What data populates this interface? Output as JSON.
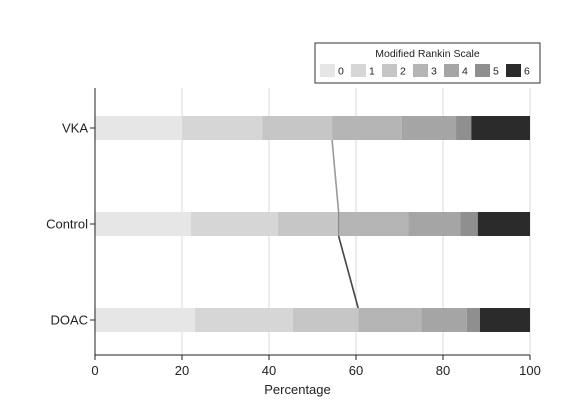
{
  "chart_data": {
    "type": "bar",
    "orientation": "horizontal",
    "stacked": true,
    "categories": [
      "VKA",
      "Control",
      "DOAC"
    ],
    "xlabel": "Percentage",
    "ylabel": "",
    "xlim": [
      0,
      100
    ],
    "xticks": [
      "0",
      "20",
      "40",
      "60",
      "80",
      "100"
    ],
    "grid": true,
    "legend": {
      "title": "Modified Rankin Scale",
      "placement": "top-right",
      "labels": [
        "0",
        "1",
        "2",
        "3",
        "4",
        "5",
        "6"
      ]
    },
    "colors": [
      "#e6e6e6",
      "#d6d6d6",
      "#c6c6c6",
      "#b5b5b5",
      "#a5a5a5",
      "#8f8f8f",
      "#2b2b2b"
    ],
    "series": [
      {
        "name": "0",
        "values": [
          20,
          22,
          23
        ]
      },
      {
        "name": "1",
        "values": [
          18.5,
          20,
          22.5
        ]
      },
      {
        "name": "2",
        "values": [
          16,
          14,
          15
        ]
      },
      {
        "name": "3",
        "values": [
          16,
          16,
          14.5
        ]
      },
      {
        "name": "4",
        "values": [
          12.5,
          12,
          10.5
        ]
      },
      {
        "name": "5",
        "values": [
          3.5,
          4,
          3
        ]
      },
      {
        "name": "6",
        "values": [
          13.5,
          12,
          11.5
        ]
      }
    ],
    "connector": {
      "description": "cumulative 0-2",
      "values": [
        54.5,
        56,
        60.5
      ]
    }
  }
}
